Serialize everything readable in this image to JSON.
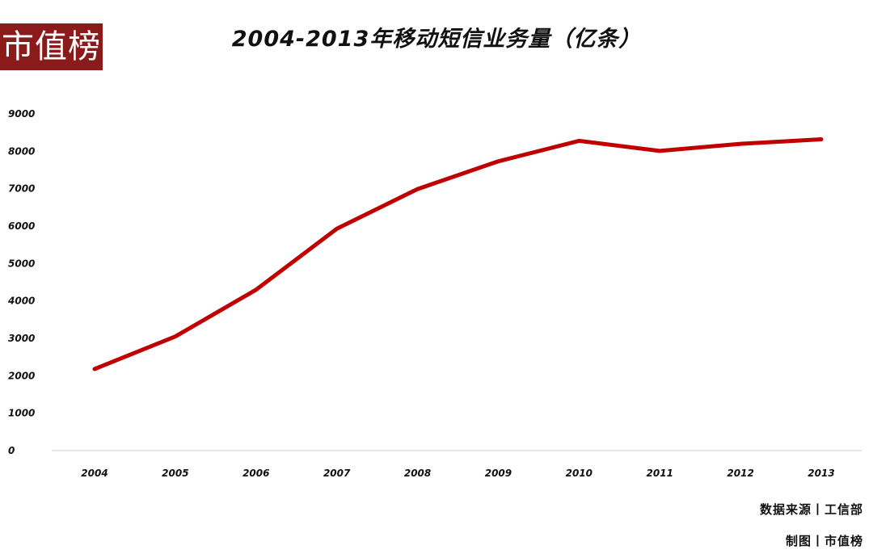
{
  "logo": {
    "text": "市值榜",
    "color": "#8b1a1a"
  },
  "footer": {
    "source": "数据来源丨工信部",
    "made_by": "制图丨市值榜"
  },
  "chart_data": {
    "type": "line",
    "title": "2004-2013年移动短信业务量（亿条）",
    "xlabel": "",
    "ylabel": "",
    "categories": [
      "2004",
      "2005",
      "2006",
      "2007",
      "2008",
      "2009",
      "2010",
      "2011",
      "2012",
      "2013"
    ],
    "series": [
      {
        "values": [
          2180,
          3050,
          4300,
          5930,
          6990,
          7730,
          8280,
          8010,
          8200,
          8320
        ],
        "color": "#c00000"
      }
    ],
    "yticks": [
      "0",
      "1000",
      "2000",
      "3000",
      "4000",
      "5000",
      "6000",
      "7000",
      "8000",
      "9000"
    ],
    "ylim": [
      0,
      9000
    ],
    "grid": false
  }
}
